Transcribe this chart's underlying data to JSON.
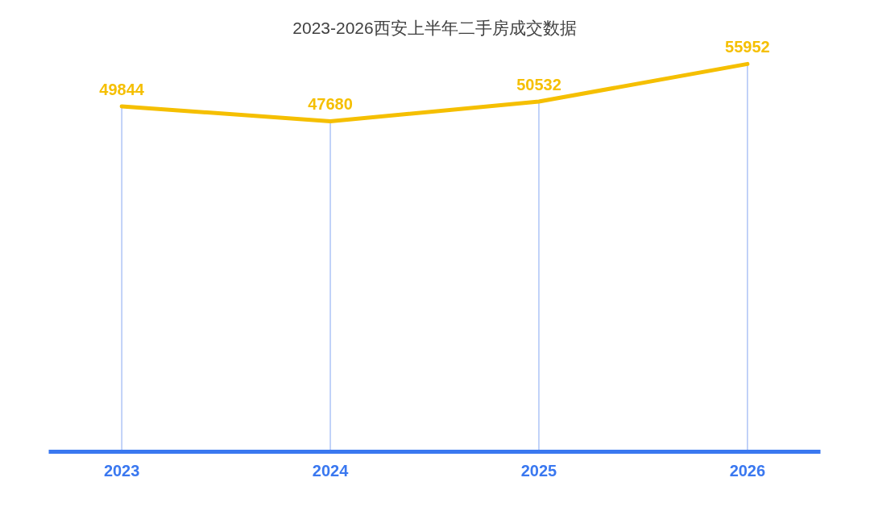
{
  "chart_data": {
    "type": "line",
    "title": "2023-2026西安上半年二手房成交数据",
    "categories": [
      "2023",
      "2024",
      "2025",
      "2026"
    ],
    "series": [
      {
        "color": "#f5bf00",
        "values": [
          49844,
          47680,
          50532,
          55952
        ]
      }
    ],
    "tick_labels": "x",
    "data_labels": true,
    "grid": "x",
    "marker": "none",
    "line_style": "solid"
  }
}
